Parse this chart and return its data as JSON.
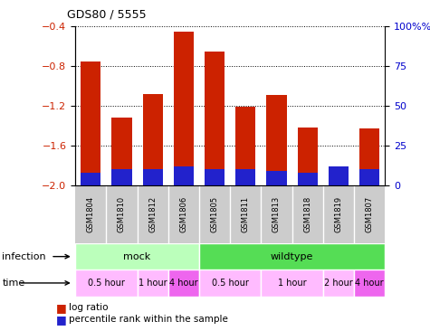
{
  "title": "GDS80 / 5555",
  "samples": [
    "GSM1804",
    "GSM1810",
    "GSM1812",
    "GSM1806",
    "GSM1805",
    "GSM1811",
    "GSM1813",
    "GSM1818",
    "GSM1819",
    "GSM1807"
  ],
  "log_ratios": [
    -0.75,
    -1.32,
    -1.08,
    -0.45,
    -0.65,
    -1.21,
    -1.09,
    -1.42,
    -1.82,
    -1.43
  ],
  "percentile_ranks": [
    8,
    10,
    10,
    12,
    10,
    10,
    9,
    8,
    12,
    10
  ],
  "ylim_left": [
    -2.0,
    -0.4
  ],
  "ylim_right": [
    0,
    100
  ],
  "yticks_left": [
    -2.0,
    -1.6,
    -1.2,
    -0.8,
    -0.4
  ],
  "yticks_right": [
    0,
    25,
    50,
    75,
    100
  ],
  "infection_groups": [
    {
      "label": "mock",
      "start": 0,
      "end": 4,
      "color": "#bbffbb"
    },
    {
      "label": "wildtype",
      "start": 4,
      "end": 10,
      "color": "#55dd55"
    }
  ],
  "time_groups": [
    {
      "label": "0.5 hour",
      "start": 0,
      "end": 2,
      "color": "#ffbbff"
    },
    {
      "label": "1 hour",
      "start": 2,
      "end": 3,
      "color": "#ffbbff"
    },
    {
      "label": "4 hour",
      "start": 3,
      "end": 4,
      "color": "#ee66ee"
    },
    {
      "label": "0.5 hour",
      "start": 4,
      "end": 6,
      "color": "#ffbbff"
    },
    {
      "label": "1 hour",
      "start": 6,
      "end": 8,
      "color": "#ffbbff"
    },
    {
      "label": "2 hour",
      "start": 8,
      "end": 9,
      "color": "#ffbbff"
    },
    {
      "label": "4 hour",
      "start": 9,
      "end": 10,
      "color": "#ee66ee"
    }
  ],
  "bar_color": "#cc2200",
  "percentile_color": "#2222cc",
  "grid_color": "black",
  "sample_bg": "#cccccc",
  "left_label_color": "#cc2200",
  "right_label_color": "#0000cc"
}
